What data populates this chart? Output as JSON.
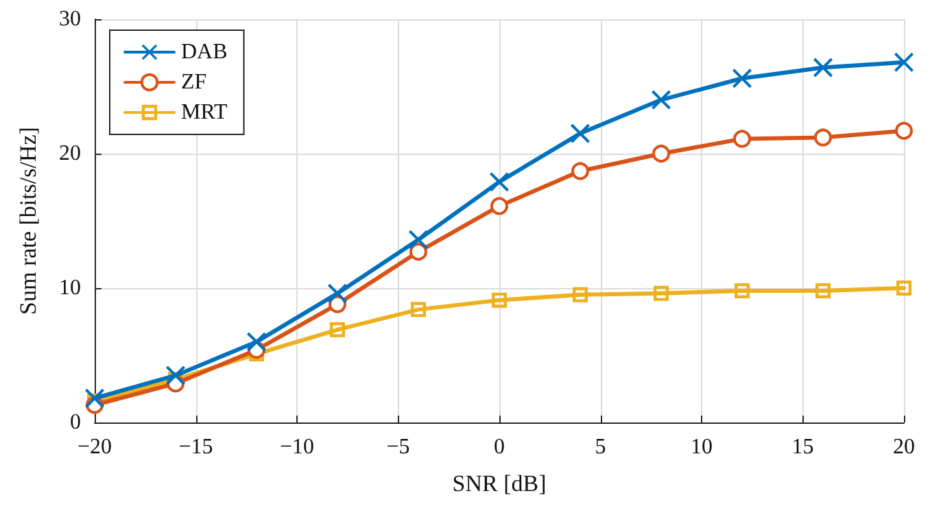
{
  "chart_data": {
    "type": "line",
    "xlabel": "SNR [dB]",
    "ylabel": "Sum rate [bits/s/Hz]",
    "x": [
      -20,
      -16,
      -12,
      -8,
      -4,
      0,
      4,
      8,
      12,
      16,
      20
    ],
    "series": [
      {
        "name": "DAB",
        "color": "#0072bd",
        "marker": "cross",
        "values": [
          1.8,
          3.5,
          6.0,
          9.6,
          13.6,
          17.9,
          21.5,
          24.0,
          25.6,
          26.4,
          26.8
        ]
      },
      {
        "name": "ZF",
        "color": "#d95319",
        "marker": "circle",
        "values": [
          1.3,
          2.9,
          5.4,
          8.8,
          12.7,
          16.1,
          18.7,
          20.0,
          21.1,
          21.2,
          21.7
        ]
      },
      {
        "name": "MRT",
        "color": "#edb120",
        "marker": "square",
        "values": [
          1.6,
          3.2,
          5.1,
          6.9,
          8.4,
          9.1,
          9.5,
          9.6,
          9.8,
          9.8,
          10.0
        ]
      }
    ],
    "xlim": [
      -20,
      20
    ],
    "xticks": [
      -20,
      -15,
      -10,
      -5,
      0,
      5,
      10,
      15,
      20
    ],
    "ylim": [
      0,
      30
    ],
    "yticks": [
      0,
      10,
      20,
      30
    ],
    "grid": true,
    "legend": "top left",
    "line_style": "solid"
  }
}
